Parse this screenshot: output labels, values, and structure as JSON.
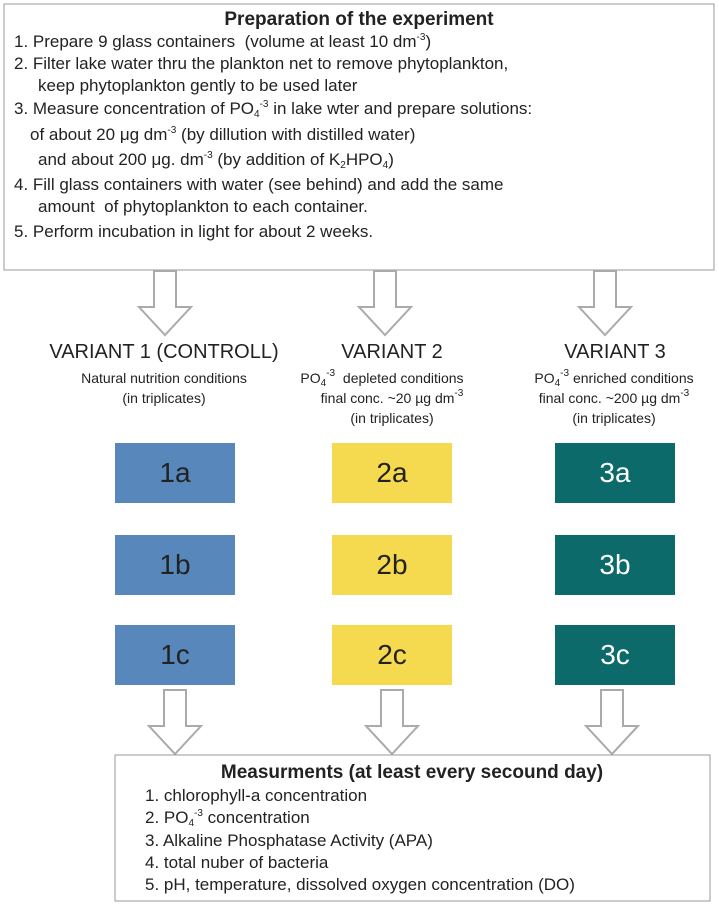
{
  "preparation": {
    "title": "Preparation of the experiment",
    "steps": [
      [
        [
          "1. Prepare 9 glass containers  (volume at least 10 dm",
          "-3",
          ")"
        ]
      ],
      [
        [
          "2. Filter lake water thru the plankton net to remove phytoplankton,"
        ],
        [
          "keep phytoplankton gently to be used later"
        ]
      ],
      [
        [
          "3. Measure concentration of PO",
          "4",
          "-3",
          " in lake wter and prepare solutions:"
        ],
        [
          "of about 20 ",
          "μg dm",
          "-3",
          " (by dillution with distilled water)"
        ],
        [
          "and about 200 ",
          "μg. dm",
          "-3",
          " (by addition of K",
          "2",
          "HPO",
          "4",
          ")"
        ]
      ],
      [
        [
          "4. Fill glass containers with water (see behind) and add the same"
        ],
        [
          "amount  of phytoplankton to each container."
        ]
      ],
      [
        [
          "5. Perform incubation in light for about 2 weeks."
        ]
      ]
    ]
  },
  "variants": [
    {
      "title": "VARIANT 1 (CONTROLL)",
      "lines": [
        [
          "Natural nutrition conditions"
        ],
        [
          "(in triplicates)"
        ]
      ],
      "containers": [
        "1a",
        "1b",
        "1c"
      ]
    },
    {
      "title": "VARIANT 2",
      "lines": [
        [
          "PO",
          "4",
          "-3",
          "  depleted conditions"
        ],
        [
          "final conc. ~20 µg dm",
          "-3"
        ],
        [
          "(in triplicates)"
        ]
      ],
      "containers": [
        "2a",
        "2b",
        "2c"
      ]
    },
    {
      "title": "VARIANT 3",
      "lines": [
        [
          "PO",
          "4",
          "-3",
          " enriched conditions"
        ],
        [
          "final conc. ~200 µg dm",
          "-3"
        ],
        [
          "(in triplicates)"
        ]
      ],
      "containers": [
        "3a",
        "3b",
        "3c"
      ]
    }
  ],
  "measurements": {
    "title": "Measurments (at least every secound day)",
    "items": [
      [
        "1. chlorophyll-a concentration"
      ],
      [
        "2. PO",
        "4",
        "-3",
        " concentration"
      ],
      [
        "3. Alkaline Phosphatase Activity (APA)"
      ],
      [
        "4. total nuber of bacteria"
      ],
      [
        "5. pH, temperature, dissolved oxygen concentration (DO)"
      ]
    ]
  }
}
